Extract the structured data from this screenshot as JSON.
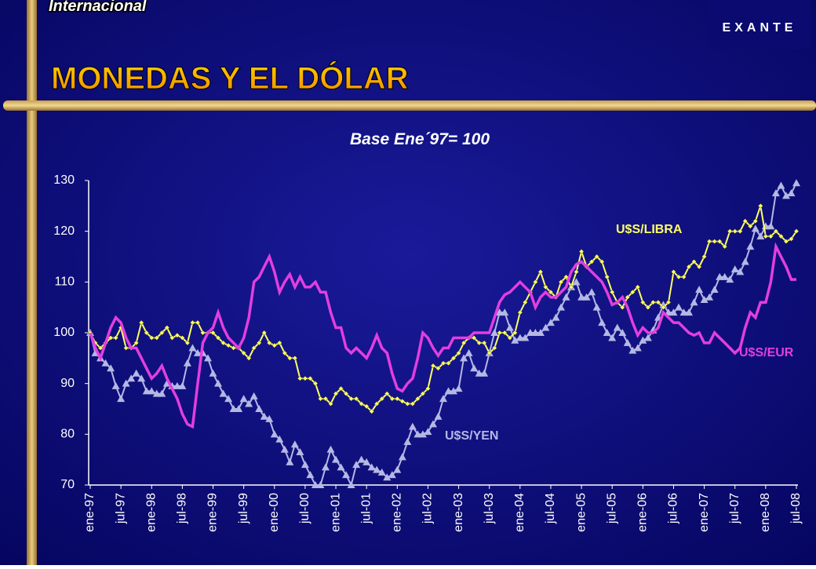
{
  "section": "Internacional",
  "logo": "EXANTE",
  "chart_data": {
    "type": "line",
    "title": "MONEDAS Y EL DÓLAR",
    "subtitle": "Base Ene´97= 100",
    "categories": [
      "ene-97",
      null,
      null,
      null,
      null,
      null,
      "jul-97",
      null,
      null,
      null,
      null,
      null,
      "ene-98",
      null,
      null,
      null,
      null,
      null,
      "jul-98",
      null,
      null,
      null,
      null,
      null,
      "ene-99",
      null,
      null,
      null,
      null,
      null,
      "jul-99",
      null,
      null,
      null,
      null,
      null,
      "ene-00",
      null,
      null,
      null,
      null,
      null,
      "jul-00",
      null,
      null,
      null,
      null,
      null,
      "ene-01",
      null,
      null,
      null,
      null,
      null,
      "jul-01",
      null,
      null,
      null,
      null,
      null,
      "ene-02",
      null,
      null,
      null,
      null,
      null,
      "jul-02",
      null,
      null,
      null,
      null,
      null,
      "ene-03",
      null,
      null,
      null,
      null,
      null,
      "jul-03",
      null,
      null,
      null,
      null,
      null,
      "ene-04",
      null,
      null,
      null,
      null,
      null,
      "jul-04",
      null,
      null,
      null,
      null,
      null,
      "ene-05",
      null,
      null,
      null,
      null,
      null,
      "jul-05",
      null,
      null,
      null,
      null,
      null,
      "ene-06",
      null,
      null,
      null,
      null,
      null,
      "jul-06",
      null,
      null,
      null,
      null,
      null,
      "ene-07",
      null,
      null,
      null,
      null,
      null,
      "jul-07",
      null,
      null,
      null,
      null,
      null,
      "ene-08",
      null,
      null,
      null,
      null,
      null,
      "jul-08"
    ],
    "series": [
      {
        "name": "U$S/LIBRA",
        "color": "#ffff66",
        "marker": "diamond",
        "values": [
          100,
          98,
          97,
          98,
          99,
          99,
          101,
          97,
          97,
          98,
          102,
          100,
          99,
          99,
          100,
          101,
          99,
          99.5,
          99,
          98,
          102,
          102,
          100,
          100,
          100,
          99,
          98,
          97.5,
          97,
          97,
          96,
          95,
          97,
          98,
          100,
          98,
          97.5,
          98,
          96,
          95,
          95,
          91,
          91,
          91,
          90,
          87,
          87,
          86,
          88,
          89,
          88,
          87,
          87,
          86,
          85.5,
          84.5,
          86,
          87,
          88,
          87,
          87,
          86.5,
          86,
          86,
          87,
          88,
          89,
          93.5,
          93,
          94,
          94,
          95,
          96,
          98,
          99,
          99,
          98,
          98,
          96,
          97,
          100,
          100,
          99,
          100,
          104,
          106,
          108,
          110,
          112,
          109,
          108,
          107,
          110,
          111,
          109,
          112,
          116,
          113,
          114,
          115,
          114,
          111,
          108,
          106,
          105,
          107,
          108,
          109,
          106,
          105,
          106,
          106,
          105,
          106,
          112,
          111,
          111,
          113,
          114,
          113,
          115,
          118,
          118,
          118,
          117,
          120,
          120,
          120,
          122,
          121,
          122,
          125,
          119,
          119,
          120,
          119,
          118,
          118.5,
          120
        ]
      },
      {
        "name": "U$S/EUR",
        "color": "#e23ee0",
        "marker": "none",
        "values": [
          100,
          97,
          95,
          98,
          101,
          103,
          102,
          99,
          97,
          97,
          95,
          93,
          91,
          92,
          93.5,
          91,
          89,
          87,
          84,
          82,
          81.5,
          90,
          98,
          100,
          101,
          104,
          101,
          99,
          98,
          97,
          99,
          103,
          110,
          111,
          113,
          115,
          112,
          108,
          110,
          111.5,
          109,
          111,
          109,
          109,
          110,
          108,
          108,
          104,
          101,
          101,
          97,
          96,
          97,
          96,
          95,
          97,
          99.5,
          97,
          96,
          92,
          89,
          88.5,
          90,
          91,
          95,
          100,
          99,
          97,
          95.5,
          97,
          97,
          99,
          99,
          99,
          99,
          100,
          100,
          100,
          100,
          103,
          106,
          107.5,
          108,
          109,
          110,
          109,
          108,
          105,
          107,
          108,
          107,
          107,
          108,
          109,
          112,
          113.5,
          114,
          113,
          112,
          111,
          110,
          108,
          105.5,
          106,
          107,
          105,
          102,
          99.5,
          101,
          100,
          100,
          101,
          104,
          103,
          102,
          102,
          101,
          100,
          99.5,
          100,
          98,
          98,
          100,
          99,
          98,
          97,
          96,
          97,
          101,
          104,
          103,
          106,
          106,
          110,
          117,
          115,
          113,
          110.5,
          110.5
        ]
      },
      {
        "name": "U$S/YEN",
        "color": "#b4b8e4",
        "marker": "triangle",
        "values": [
          100,
          96,
          95,
          94,
          93,
          89.5,
          87,
          90,
          91,
          92,
          91,
          88.5,
          88.5,
          88,
          88,
          90,
          89.5,
          89.5,
          89.5,
          94,
          97,
          96,
          96,
          95,
          92,
          90,
          88,
          87,
          85,
          85,
          87,
          86,
          87.5,
          85,
          83.5,
          83,
          80,
          79,
          77,
          74.5,
          78,
          76.5,
          74,
          72,
          70,
          70,
          73.5,
          77,
          75,
          73.5,
          72,
          70,
          74,
          75,
          74.5,
          73.5,
          73,
          72.5,
          71.5,
          72,
          73,
          75.5,
          78.5,
          81.5,
          80,
          80,
          80.5,
          82,
          83.5,
          87,
          88.5,
          88.5,
          89,
          95,
          96,
          93,
          92,
          92,
          96,
          100,
          104,
          104,
          101,
          98.5,
          99,
          99,
          100,
          100,
          100,
          101,
          102,
          103,
          105,
          107,
          109,
          110,
          107,
          107,
          108,
          105,
          102,
          100,
          99,
          101,
          100,
          98,
          96.5,
          97,
          98.5,
          99,
          100.5,
          103,
          105.5,
          104,
          104,
          105,
          104,
          104,
          106,
          108.5,
          106.5,
          107,
          108.5,
          111,
          111,
          110.5,
          112.5,
          112,
          114,
          117,
          120.5,
          119,
          121,
          121,
          127.5,
          129,
          127,
          127.5,
          129.5
        ]
      }
    ],
    "ylim": [
      70,
      130
    ],
    "yticks": [
      70,
      80,
      90,
      100,
      110,
      120,
      130
    ],
    "grid": false
  }
}
